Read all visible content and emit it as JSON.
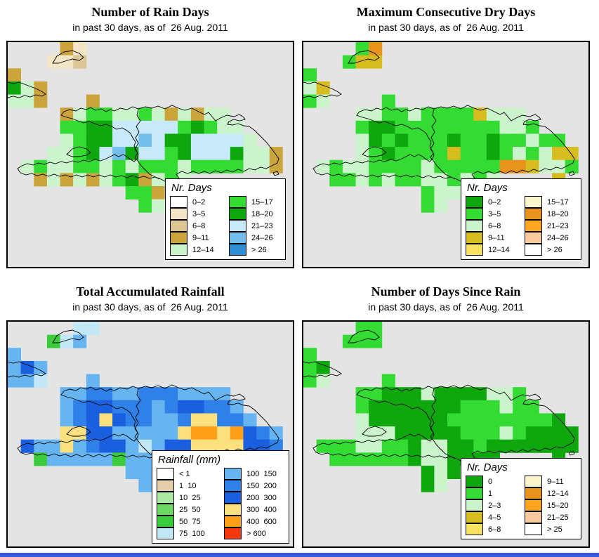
{
  "page": {
    "background": "#FFFFFF",
    "sea_color": "#E4E4E4",
    "bottom_bar_color": "#3B57E0"
  },
  "palette": {
    "b": "#F2E6C6",
    "c": "#DCC795",
    "d": "#CBA43C",
    "e": "#CCF4CC",
    "f": "#33DB33",
    "g": "#0EA80E",
    "h": "#C8E9FA",
    "i": "#74BEEC",
    "A": "#0EA80E",
    "B": "#33DB33",
    "C": "#CCF4CC",
    "D": "#D6BC1E",
    "G": "#E8941C",
    "o": "#3BCC3B",
    "p": "#C2E7F7",
    "q": "#66B4F0",
    "r": "#2F80E8",
    "s": "#1A5FE0",
    "t": "#FAE07E",
    "u": "#FFA018",
    "P": "#0EA80E",
    "Q": "#33DB33",
    "R": "#CCF4CC"
  },
  "panels": [
    {
      "id": "rain-days",
      "title": "Number of Rain Days",
      "subtitle": "in past 30 days, as of  26 Aug. 2011",
      "legend": {
        "title": "Nr. Days",
        "columns": [
          [
            {
              "label": "0–2",
              "color": "#FFFFFF"
            },
            {
              "label": "3–5",
              "color": "#F2E6C6"
            },
            {
              "label": "6–8",
              "color": "#DCC795"
            },
            {
              "label": "9–11",
              "color": "#CBA43C"
            },
            {
              "label": "12–14",
              "color": "#CCF4CC"
            }
          ],
          [
            {
              "label": "15–17",
              "color": "#33DB33"
            },
            {
              "label": "18–20",
              "color": "#0EA80E"
            },
            {
              "label": "21–23",
              "color": "#C8E9FA"
            },
            {
              "label": "24–26",
              "color": "#74BEEC"
            },
            {
              "label": "> 26",
              "color": "#2F8FD4"
            }
          ]
        ]
      },
      "grid": [
        "....db................",
        "...bbc................",
        "d.....................",
        "ged...................",
        "eed...d...............",
        "....deffeefededee.....",
        "....ffgghhhhhfgfee....",
        "....efgghhihgghhhhe...",
        "...eefghighhfghhhgeed.",
        ".efeeffefefffeffffeed.",
        "..dededefgdefe........",
        ".........ffdee........",
        "..........fe..........",
        "......................",
        "......................",
        "......................",
        "......................"
      ]
    },
    {
      "id": "dry-days",
      "title": "Maximum Consecutive Dry Days",
      "subtitle": "in past 30 days, as of  26 Aug. 2011",
      "legend": {
        "title": "Nr. Days",
        "columns": [
          [
            {
              "label": "0–2",
              "color": "#0EA80E"
            },
            {
              "label": "3–5",
              "color": "#33DB33"
            },
            {
              "label": "6–8",
              "color": "#CCF4CC"
            },
            {
              "label": "9–11",
              "color": "#D6BC1E"
            },
            {
              "label": "12–14",
              "color": "#F7E262"
            }
          ],
          [
            {
              "label": "15–17",
              "color": "#FBF6CE"
            },
            {
              "label": "18–20",
              "color": "#E8941C"
            },
            {
              "label": "21–23",
              "color": "#FFA51F"
            },
            {
              "label": "24–26",
              "color": "#F8CA9E"
            },
            {
              "label": "> 26",
              "color": "#FFFFFF"
            }
          ]
        ]
      },
      "grid": [
        "....BG................",
        "...BDD................",
        "B.....................",
        "CD....................",
        "BC....B...............",
        "....CCBBCBBBBDCCC.....",
        "....BAABBBBBBBBCCB....",
        "....CABABBBABBABBCBB..",
        "....CBABBBBDBBABCBCDD.",
        ".CBCCBBBBCBBBBBGGDCCB.",
        "..BBCBCBBCCBCBC....D..",
        ".........BCCC.........",
        ".........BC...........",
        "......................",
        "......................",
        "......................",
        "......................"
      ]
    },
    {
      "id": "rainfall",
      "title": "Total Accumulated Rainfall",
      "subtitle": "in past 30 days, as of  26 Aug. 2011",
      "legend": {
        "title": "Rainfall (mm)",
        "columns": [
          [
            {
              "label": "< 1",
              "color": "#FFFFFF"
            },
            {
              "label": "1  10",
              "color": "#E3CFA9"
            },
            {
              "label": "10  25",
              "color": "#ACE9A2"
            },
            {
              "label": "25  50",
              "color": "#6FD966"
            },
            {
              "label": "50  75",
              "color": "#3BCC3B"
            },
            {
              "label": "75  100",
              "color": "#C2E7F7"
            }
          ],
          [
            {
              "label": "100  150",
              "color": "#66B4F0"
            },
            {
              "label": "150  200",
              "color": "#2F80E8"
            },
            {
              "label": "200  300",
              "color": "#1A5FE0"
            },
            {
              "label": "300  400",
              "color": "#FAE07E"
            },
            {
              "label": "400  600",
              "color": "#FFA018"
            },
            {
              "label": "> 600",
              "color": "#F5380E"
            }
          ]
        ]
      },
      "grid": [
        ".....pp...............",
        "...opq................",
        "q.....................",
        "qsq...................",
        "qqp...q...............",
        "....qqrrqqrrrqqqq.....",
        "....qrssrrrqrssrrq....",
        "....qrstsrrqqrttrrq...",
        "....ttssqqqqqtuutusrq.",
        ".sqqtqrssqpqssttttssr.",
        "..oqqqqqoqqqqqt....t..",
        ".........qqq..........",
        "..........q...........",
        "......................",
        "......................",
        "......................",
        "......................"
      ]
    },
    {
      "id": "days-since-rain",
      "title": "Number of Days Since Rain",
      "subtitle": "in past 30 days, as of  26 Aug. 2011",
      "legend": {
        "title": "Nr. Days",
        "columns": [
          [
            {
              "label": "0",
              "color": "#0EA80E"
            },
            {
              "label": "1",
              "color": "#33DB33"
            },
            {
              "label": "2–3",
              "color": "#CCF4CC"
            },
            {
              "label": "4–5",
              "color": "#D6BC1E"
            },
            {
              "label": "6–8",
              "color": "#F7E262"
            }
          ],
          [
            {
              "label": "9–11",
              "color": "#FBF6CE"
            },
            {
              "label": "12–14",
              "color": "#E8941C"
            },
            {
              "label": "15–20",
              "color": "#FFA51F"
            },
            {
              "label": "21–25",
              "color": "#F8CA9E"
            },
            {
              "label": "> 25",
              "color": "#FFFFFF"
            }
          ]
        ]
      },
      "grid": [
        "....QQ................",
        "...QQQ................",
        "Q.....................",
        "QP....................",
        "QR....Q...............",
        "....QQPPPRPPPPRRQ.....",
        "....QPPPPPPPQQQRQQ....",
        "....RPPPPPPQQQQQQQQP..",
        "....RRRPPPPPQQQRQPPPP.",
        ".QQQRRQQPRRPPQPPPPPPP.",
        "..QQQQQQPRRPPPP....P..",
        ".........PRPR.........",
        ".........PR...........",
        "......................",
        "......................",
        "......................",
        "......................"
      ]
    }
  ]
}
